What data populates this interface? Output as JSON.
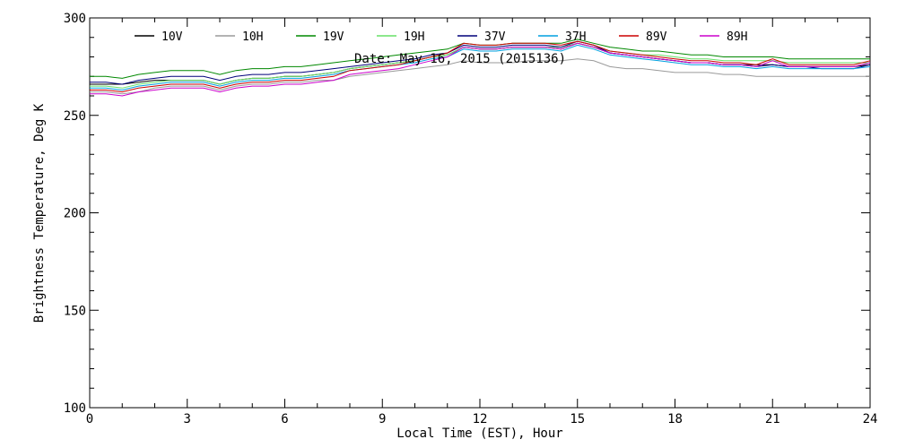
{
  "chart_data": {
    "type": "line",
    "title": "",
    "annotation": "Date: May 16, 2015 (2015136)",
    "xlabel": "Local Time (EST), Hour",
    "ylabel": "Brightness Temperature, Deg K",
    "xlim": [
      0,
      24
    ],
    "ylim": [
      100,
      300
    ],
    "xticks": [
      0,
      3,
      6,
      9,
      12,
      15,
      18,
      21,
      24
    ],
    "yticks": [
      100,
      150,
      200,
      250,
      300
    ],
    "grid": false,
    "legend_position": "top",
    "x": [
      0,
      0.5,
      1,
      1.5,
      2,
      2.5,
      3,
      3.5,
      4,
      4.5,
      5,
      5.5,
      6,
      6.5,
      7,
      7.5,
      8,
      8.5,
      9,
      9.5,
      10,
      10.5,
      11,
      11.5,
      12,
      12.5,
      13,
      13.5,
      14,
      14.5,
      15,
      15.5,
      16,
      16.5,
      17,
      17.5,
      18,
      18.5,
      19,
      19.5,
      20,
      20.5,
      21,
      21.5,
      22,
      22.5,
      23,
      23.5,
      24
    ],
    "series": [
      {
        "name": "10V",
        "color": "#000000",
        "values": [
          266,
          266,
          266,
          267,
          268,
          268,
          268,
          268,
          266,
          268,
          269,
          269,
          270,
          270,
          271,
          272,
          274,
          275,
          276,
          277,
          278,
          280,
          281,
          285,
          284,
          284,
          285,
          285,
          285,
          284,
          287,
          285,
          282,
          281,
          280,
          279,
          278,
          277,
          277,
          276,
          276,
          276,
          276,
          275,
          275,
          275,
          275,
          275,
          276
        ]
      },
      {
        "name": "10H",
        "color": "#9a9a9a",
        "values": [
          262,
          262,
          261,
          262,
          264,
          265,
          265,
          265,
          263,
          265,
          266,
          266,
          267,
          267,
          268,
          268,
          270,
          271,
          272,
          273,
          274,
          275,
          276,
          278,
          277,
          277,
          277,
          278,
          278,
          278,
          279,
          278,
          275,
          274,
          274,
          273,
          272,
          272,
          272,
          271,
          271,
          270,
          270,
          270,
          270,
          270,
          270,
          270,
          270
        ]
      },
      {
        "name": "19V",
        "color": "#008800",
        "values": [
          270,
          270,
          269,
          271,
          272,
          273,
          273,
          273,
          271,
          273,
          274,
          274,
          275,
          275,
          276,
          277,
          278,
          279,
          280,
          281,
          282,
          283,
          284,
          287,
          286,
          286,
          287,
          287,
          287,
          287,
          289,
          287,
          285,
          284,
          283,
          283,
          282,
          281,
          281,
          280,
          280,
          280,
          280,
          279,
          279,
          279,
          279,
          279,
          279
        ]
      },
      {
        "name": "19H",
        "color": "#66e066",
        "values": [
          265,
          265,
          264,
          266,
          267,
          268,
          268,
          268,
          266,
          268,
          269,
          269,
          270,
          270,
          271,
          272,
          274,
          275,
          276,
          277,
          278,
          280,
          281,
          285,
          284,
          284,
          285,
          285,
          285,
          285,
          287,
          285,
          283,
          282,
          281,
          281,
          280,
          279,
          279,
          278,
          278,
          278,
          278,
          277,
          277,
          277,
          277,
          277,
          277
        ]
      },
      {
        "name": "37V",
        "color": "#00007a",
        "values": [
          267,
          267,
          266,
          268,
          269,
          270,
          270,
          270,
          268,
          270,
          271,
          271,
          272,
          272,
          273,
          274,
          275,
          276,
          277,
          278,
          279,
          281,
          282,
          286,
          285,
          285,
          286,
          286,
          286,
          285,
          288,
          286,
          282,
          281,
          280,
          279,
          278,
          277,
          277,
          276,
          276,
          275,
          276,
          275,
          275,
          274,
          274,
          274,
          276
        ]
      },
      {
        "name": "37H",
        "color": "#00a0e0",
        "values": [
          264,
          264,
          263,
          265,
          266,
          267,
          267,
          267,
          265,
          267,
          268,
          268,
          269,
          269,
          270,
          271,
          273,
          274,
          275,
          276,
          277,
          279,
          280,
          284,
          283,
          283,
          284,
          284,
          284,
          283,
          286,
          284,
          281,
          280,
          279,
          278,
          277,
          276,
          276,
          275,
          275,
          274,
          275,
          274,
          274,
          274,
          274,
          274,
          275
        ]
      },
      {
        "name": "89V",
        "color": "#cc0000",
        "values": [
          263,
          263,
          262,
          264,
          265,
          266,
          266,
          266,
          264,
          266,
          267,
          267,
          268,
          268,
          269,
          270,
          273,
          274,
          275,
          276,
          278,
          280,
          282,
          287,
          286,
          286,
          287,
          287,
          287,
          286,
          288,
          286,
          283,
          282,
          281,
          280,
          279,
          278,
          278,
          277,
          277,
          276,
          279,
          276,
          276,
          276,
          276,
          276,
          278
        ]
      },
      {
        "name": "89H",
        "color": "#cc00cc",
        "values": [
          261,
          261,
          260,
          262,
          263,
          264,
          264,
          264,
          262,
          264,
          265,
          265,
          266,
          266,
          267,
          268,
          271,
          272,
          273,
          274,
          276,
          278,
          280,
          285,
          284,
          284,
          285,
          285,
          285,
          284,
          287,
          285,
          282,
          281,
          280,
          279,
          278,
          277,
          277,
          276,
          276,
          275,
          278,
          275,
          275,
          275,
          275,
          275,
          277
        ]
      }
    ]
  }
}
